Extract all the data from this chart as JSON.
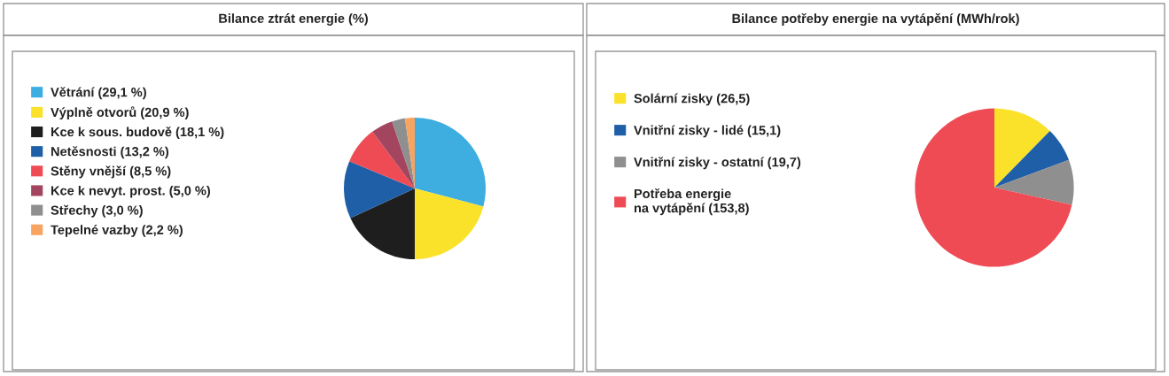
{
  "chart_data": [
    {
      "type": "pie",
      "title": "Bilance ztrát energie (%)",
      "legend": "left",
      "categories": [
        "Větrání (29,1 %)",
        "Výplně otvorů (20,9 %)",
        "Kce k sous. budově (18,1 %)",
        "Netěsnosti (13,2 %)",
        "Stěny vnější (8,5 %)",
        "Kce k nevyt. prost. (5,0 %)",
        "Střechy (3,0 %)",
        "Tepelné vazby (2,2 %)"
      ],
      "values": [
        29.1,
        20.9,
        18.1,
        13.2,
        8.5,
        5.0,
        3.0,
        2.2
      ],
      "colors": [
        "#3eaee0",
        "#fbe22a",
        "#1e1e1e",
        "#1f5fa8",
        "#ef4b55",
        "#a3455e",
        "#8f8f8f",
        "#f7a463"
      ]
    },
    {
      "type": "pie",
      "title": "Bilance potřeby energie na vytápění (MWh/rok)",
      "legend": "left",
      "categories": [
        "Solární zisky (26,5)",
        "Vnitřní zisky - lidé (15,1)",
        "Vnitřní zisky - ostatní (19,7)",
        "Potřeba energie\nna vytápění (153,8)"
      ],
      "values": [
        26.5,
        15.1,
        19.7,
        153.8
      ],
      "colors": [
        "#fbe22a",
        "#1f5fa8",
        "#8f8f8f",
        "#ef4b55"
      ]
    }
  ]
}
